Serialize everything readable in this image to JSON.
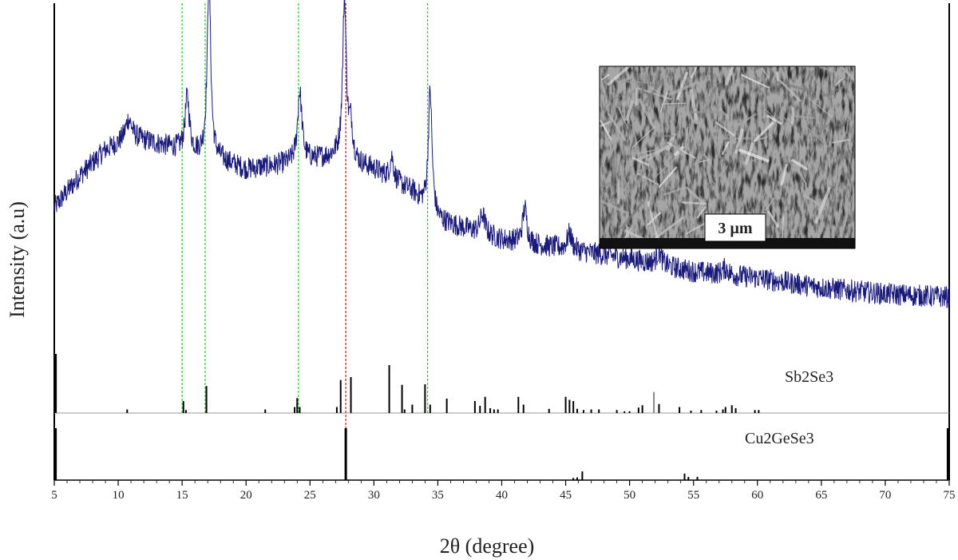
{
  "chart_data": {
    "type": "line",
    "xlabel": "2θ (degree)",
    "ylabel": "Intensity (a.u)",
    "xlim": [
      5,
      75
    ],
    "xticks": [
      5,
      10,
      15,
      20,
      25,
      30,
      35,
      40,
      45,
      50,
      55,
      60,
      65,
      70,
      75
    ],
    "tick_labels": [
      "5",
      "10",
      "15",
      "20",
      "25",
      "30",
      "35",
      "40",
      "45",
      "50",
      "55",
      "60",
      "65",
      "70",
      "75"
    ],
    "grid": false,
    "colors": {
      "pattern": "#1a1a7a",
      "green_guides": "#33cc33",
      "red_guide": "#dd2222",
      "reference_sticks": "#000000",
      "baseline": "#999999"
    },
    "xrd_pattern": {
      "baseline": [
        [
          5.0,
          0.4
        ],
        [
          7.0,
          0.5
        ],
        [
          9.0,
          0.58
        ],
        [
          11.0,
          0.62
        ],
        [
          13.0,
          0.6
        ],
        [
          15.0,
          0.58
        ],
        [
          18.0,
          0.55
        ],
        [
          20.0,
          0.52
        ],
        [
          22.0,
          0.53
        ],
        [
          25.0,
          0.55
        ],
        [
          27.0,
          0.56
        ],
        [
          30.0,
          0.52
        ],
        [
          33.0,
          0.45
        ],
        [
          35.0,
          0.36
        ],
        [
          40.0,
          0.3
        ],
        [
          45.0,
          0.27
        ],
        [
          50.0,
          0.24
        ],
        [
          55.0,
          0.2
        ],
        [
          60.0,
          0.18
        ],
        [
          65.0,
          0.15
        ],
        [
          70.0,
          0.13
        ],
        [
          75.0,
          0.12
        ]
      ],
      "peaks": [
        {
          "pos": 10.8,
          "height": 0.06,
          "width": 0.5
        },
        {
          "pos": 15.4,
          "height": 0.17,
          "width": 0.35
        },
        {
          "pos": 17.1,
          "height": 0.57,
          "width": 0.28
        },
        {
          "pos": 24.2,
          "height": 0.22,
          "width": 0.35
        },
        {
          "pos": 27.7,
          "height": 0.5,
          "width": 0.3
        },
        {
          "pos": 28.2,
          "height": 0.1,
          "width": 0.3
        },
        {
          "pos": 31.4,
          "height": 0.07,
          "width": 0.3
        },
        {
          "pos": 34.4,
          "height": 0.38,
          "width": 0.3
        },
        {
          "pos": 38.5,
          "height": 0.06,
          "width": 0.4
        },
        {
          "pos": 41.8,
          "height": 0.11,
          "width": 0.35
        },
        {
          "pos": 45.3,
          "height": 0.05,
          "width": 0.4
        },
        {
          "pos": 52.3,
          "height": 0.04,
          "width": 0.4
        },
        {
          "pos": 57.5,
          "height": 0.02,
          "width": 0.5
        }
      ]
    },
    "guide_lines": [
      {
        "x": 15.0,
        "color": "green"
      },
      {
        "x": 16.8,
        "color": "green"
      },
      {
        "x": 24.1,
        "color": "green"
      },
      {
        "x": 27.8,
        "color": "red"
      },
      {
        "x": 34.2,
        "color": "green"
      }
    ],
    "reference_patterns": [
      {
        "name": "Sb2Se3",
        "sticks": [
          [
            5.1,
            1.0
          ],
          [
            10.7,
            0.06
          ],
          [
            15.1,
            0.2
          ],
          [
            15.3,
            0.05
          ],
          [
            16.9,
            0.45
          ],
          [
            21.5,
            0.06
          ],
          [
            23.8,
            0.1
          ],
          [
            24.0,
            0.25
          ],
          [
            24.2,
            0.1
          ],
          [
            27.1,
            0.1
          ],
          [
            27.4,
            0.55
          ],
          [
            28.2,
            0.6
          ],
          [
            31.2,
            0.8
          ],
          [
            32.2,
            0.47
          ],
          [
            32.4,
            0.06
          ],
          [
            33.0,
            0.14
          ],
          [
            34.0,
            0.48
          ],
          [
            34.4,
            0.14
          ],
          [
            35.7,
            0.24
          ],
          [
            37.9,
            0.2
          ],
          [
            38.3,
            0.12
          ],
          [
            38.7,
            0.27
          ],
          [
            39.1,
            0.08
          ],
          [
            39.4,
            0.06
          ],
          [
            39.7,
            0.06
          ],
          [
            41.3,
            0.27
          ],
          [
            41.7,
            0.14
          ],
          [
            43.7,
            0.07
          ],
          [
            45.0,
            0.27
          ],
          [
            45.3,
            0.22
          ],
          [
            45.6,
            0.2
          ],
          [
            45.9,
            0.07
          ],
          [
            46.4,
            0.05
          ],
          [
            47.0,
            0.06
          ],
          [
            47.6,
            0.06
          ],
          [
            49.0,
            0.05
          ],
          [
            49.6,
            0.03
          ],
          [
            50.0,
            0.03
          ],
          [
            50.7,
            0.09
          ],
          [
            51.0,
            0.13
          ],
          [
            51.9,
            0.35
          ],
          [
            52.3,
            0.15
          ],
          [
            53.9,
            0.1
          ],
          [
            54.8,
            0.04
          ],
          [
            55.6,
            0.05
          ],
          [
            56.8,
            0.04
          ],
          [
            57.3,
            0.06
          ],
          [
            57.5,
            0.1
          ],
          [
            58.0,
            0.13
          ],
          [
            58.3,
            0.08
          ],
          [
            59.8,
            0.05
          ],
          [
            60.1,
            0.05
          ]
        ]
      },
      {
        "name": "Cu2GeSe3",
        "sticks": [
          [
            5.1,
            1.0
          ],
          [
            27.8,
            1.0
          ],
          [
            45.6,
            0.04
          ],
          [
            45.9,
            0.05
          ],
          [
            46.3,
            0.16
          ],
          [
            54.3,
            0.12
          ],
          [
            54.6,
            0.06
          ],
          [
            55.3,
            0.06
          ],
          [
            74.9,
            1.0
          ]
        ]
      }
    ],
    "inset": {
      "type": "SEM micrograph",
      "scale_bar": "3 µm"
    }
  }
}
